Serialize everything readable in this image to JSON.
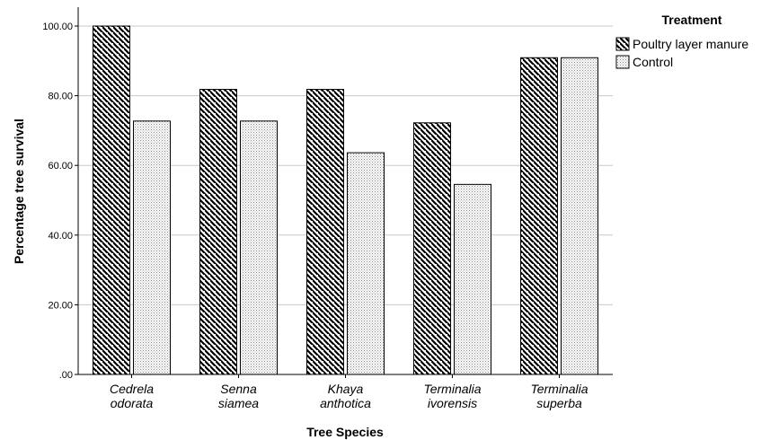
{
  "chart_data": {
    "type": "bar",
    "categories": [
      [
        "Cedrela",
        "odorata"
      ],
      [
        "Senna",
        "siamea"
      ],
      [
        "Khaya",
        "anthotica"
      ],
      [
        "Terminalia",
        "ivorensis"
      ],
      [
        "Terminalia",
        "superba"
      ]
    ],
    "series": [
      {
        "name": "Poultry layer manure",
        "values": [
          100.0,
          81.82,
          81.82,
          72.22,
          90.91
        ],
        "pattern": "diagonal-hatch"
      },
      {
        "name": "Control",
        "values": [
          72.73,
          72.73,
          63.64,
          54.55,
          90.91
        ],
        "pattern": "dots"
      }
    ],
    "xlabel": "Tree Species",
    "ylabel": "Percentage tree survival",
    "ylim": [
      0,
      100
    ],
    "yticks": [
      {
        "value": 0,
        "label": ".00"
      },
      {
        "value": 20,
        "label": "20.00"
      },
      {
        "value": 40,
        "label": "40.00"
      },
      {
        "value": 60,
        "label": "60.00"
      },
      {
        "value": 80,
        "label": "80.00"
      },
      {
        "value": 100,
        "label": "100.00"
      }
    ],
    "grid": true,
    "legend": {
      "title": "Treatment",
      "position": "top-right"
    },
    "colors": {
      "bar_fill": "#ffffff",
      "bar_stroke": "#000000",
      "hatch": "#000000",
      "grid": "#c8c8c8",
      "axis": "#000000"
    }
  }
}
